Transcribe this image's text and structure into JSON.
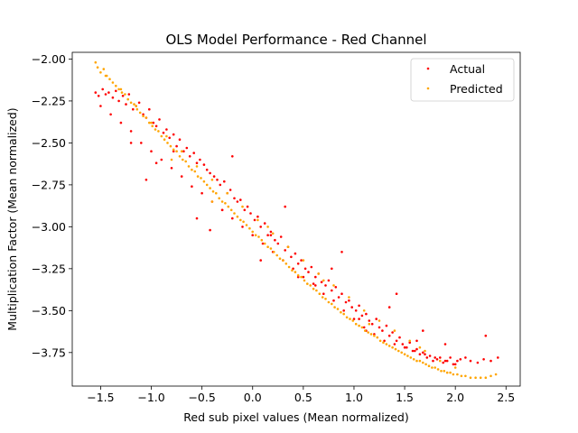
{
  "chart_data": {
    "type": "scatter",
    "title": "OLS Model Performance - Red Channel",
    "xlabel": "Red sub pixel values (Mean normalized)",
    "ylabel": "Multiplication Factor (Mean normalized)",
    "xlim": [
      -1.78,
      2.64
    ],
    "ylim": [
      -3.95,
      -1.96
    ],
    "xticks": [
      -1.5,
      -1.0,
      -0.5,
      0.0,
      0.5,
      1.0,
      1.5,
      2.0,
      2.5
    ],
    "xtick_labels": [
      "−1.5",
      "−1.0",
      "−0.5",
      "0.0",
      "0.5",
      "1.0",
      "1.5",
      "2.0",
      "2.5"
    ],
    "yticks": [
      -2.0,
      -2.25,
      -2.5,
      -2.75,
      -3.0,
      -3.25,
      -3.5,
      -3.75
    ],
    "ytick_labels": [
      "−2.00",
      "−2.25",
      "−2.50",
      "−2.75",
      "−3.00",
      "−3.25",
      "−3.50",
      "−3.75"
    ],
    "grid": false,
    "legend": "top-right",
    "series": [
      {
        "name": "Actual",
        "color": "#ff0000",
        "x": [
          -1.55,
          -1.52,
          -1.48,
          -1.45,
          -1.42,
          -1.38,
          -1.35,
          -1.32,
          -1.28,
          -1.25,
          -1.22,
          -1.18,
          -1.15,
          -1.12,
          -1.08,
          -1.05,
          -1.02,
          -0.98,
          -0.95,
          -0.92,
          -0.88,
          -0.85,
          -0.82,
          -0.78,
          -0.75,
          -0.72,
          -0.68,
          -0.65,
          -0.62,
          -0.58,
          -0.55,
          -0.52,
          -0.48,
          -0.45,
          -0.42,
          -0.38,
          -0.35,
          -0.32,
          -0.28,
          -0.25,
          -0.22,
          -0.18,
          -0.15,
          -0.12,
          -0.08,
          -0.05,
          -0.02,
          0.02,
          0.05,
          0.08,
          0.12,
          0.15,
          0.18,
          0.22,
          0.25,
          0.28,
          0.32,
          0.35,
          0.38,
          0.42,
          0.45,
          0.48,
          0.52,
          0.55,
          0.58,
          0.62,
          0.65,
          0.68,
          0.72,
          0.75,
          0.78,
          0.82,
          0.85,
          0.88,
          0.92,
          0.95,
          0.98,
          1.02,
          1.05,
          1.08,
          1.12,
          1.15,
          1.18,
          1.22,
          1.25,
          1.28,
          1.32,
          1.35,
          1.38,
          1.42,
          1.45,
          1.48,
          1.52,
          1.55,
          1.58,
          1.62,
          1.65,
          1.68,
          1.72,
          1.75,
          1.78,
          1.82,
          1.85,
          1.88,
          1.92,
          1.95,
          1.98,
          2.02,
          2.05,
          2.1,
          2.15,
          2.22,
          2.28,
          2.35,
          2.42,
          -1.5,
          -1.4,
          -1.3,
          -1.2,
          -1.1,
          -1.0,
          -0.9,
          -0.8,
          -0.7,
          -0.6,
          -0.5,
          -0.4,
          -0.3,
          -0.2,
          -0.1,
          0.0,
          0.1,
          0.2,
          0.3,
          0.4,
          0.5,
          0.6,
          0.7,
          0.8,
          0.9,
          1.0,
          1.1,
          1.2,
          1.3,
          1.4,
          1.5,
          1.6,
          1.7,
          1.8,
          1.9,
          2.0,
          -1.05,
          -0.95,
          -0.55,
          -0.42,
          -0.2,
          0.08,
          0.32,
          0.62,
          0.88,
          1.12,
          1.42,
          1.62,
          1.9,
          -1.2,
          -0.78,
          -0.3,
          0.18,
          0.45,
          0.78,
          1.05,
          1.35,
          1.68,
          2.3
        ],
        "y": [
          -2.2,
          -2.22,
          -2.18,
          -2.21,
          -2.2,
          -2.23,
          -2.19,
          -2.25,
          -2.22,
          -2.27,
          -2.21,
          -2.3,
          -2.28,
          -2.26,
          -2.33,
          -2.35,
          -2.3,
          -2.38,
          -2.4,
          -2.36,
          -2.44,
          -2.42,
          -2.47,
          -2.45,
          -2.52,
          -2.48,
          -2.55,
          -2.53,
          -2.58,
          -2.56,
          -2.62,
          -2.6,
          -2.63,
          -2.66,
          -2.68,
          -2.7,
          -2.72,
          -2.75,
          -2.73,
          -2.8,
          -2.78,
          -2.83,
          -2.85,
          -2.84,
          -2.9,
          -2.88,
          -2.92,
          -2.96,
          -2.94,
          -3.0,
          -2.98,
          -3.05,
          -3.03,
          -3.08,
          -3.1,
          -3.06,
          -3.14,
          -3.12,
          -3.18,
          -3.16,
          -3.22,
          -3.2,
          -3.25,
          -3.27,
          -3.24,
          -3.3,
          -3.28,
          -3.33,
          -3.35,
          -3.32,
          -3.38,
          -3.36,
          -3.42,
          -3.4,
          -3.45,
          -3.44,
          -3.48,
          -3.5,
          -3.47,
          -3.53,
          -3.52,
          -3.56,
          -3.58,
          -3.55,
          -3.6,
          -3.62,
          -3.59,
          -3.65,
          -3.63,
          -3.68,
          -3.66,
          -3.7,
          -3.72,
          -3.69,
          -3.74,
          -3.73,
          -3.76,
          -3.75,
          -3.78,
          -3.77,
          -3.8,
          -3.79,
          -3.78,
          -3.81,
          -3.8,
          -3.78,
          -3.82,
          -3.8,
          -3.79,
          -3.78,
          -3.8,
          -3.81,
          -3.79,
          -3.8,
          -3.78,
          -2.28,
          -2.33,
          -2.38,
          -2.43,
          -2.5,
          -2.55,
          -2.6,
          -2.65,
          -2.7,
          -2.76,
          -2.8,
          -2.85,
          -2.9,
          -2.95,
          -3.0,
          -3.05,
          -3.1,
          -3.15,
          -3.2,
          -3.25,
          -3.3,
          -3.34,
          -3.4,
          -3.44,
          -3.5,
          -3.55,
          -3.6,
          -3.64,
          -3.68,
          -3.7,
          -3.72,
          -3.74,
          -3.76,
          -3.78,
          -3.8,
          -3.82,
          -2.72,
          -2.62,
          -2.95,
          -3.02,
          -2.58,
          -3.2,
          -2.88,
          -3.35,
          -3.15,
          -3.62,
          -3.4,
          -3.68,
          -3.7,
          -2.5,
          -2.55,
          -2.9,
          -3.05,
          -3.3,
          -3.25,
          -3.55,
          -3.48,
          -3.62,
          -3.65
        ]
      },
      {
        "name": "Predicted",
        "color": "#ffa500",
        "x": [
          -1.55,
          -1.53,
          -1.5,
          -1.47,
          -1.44,
          -1.41,
          -1.38,
          -1.35,
          -1.32,
          -1.29,
          -1.26,
          -1.23,
          -1.2,
          -1.17,
          -1.14,
          -1.11,
          -1.08,
          -1.05,
          -1.02,
          -0.99,
          -0.96,
          -0.93,
          -0.9,
          -0.87,
          -0.84,
          -0.81,
          -0.78,
          -0.75,
          -0.72,
          -0.69,
          -0.66,
          -0.63,
          -0.6,
          -0.57,
          -0.54,
          -0.51,
          -0.48,
          -0.45,
          -0.42,
          -0.39,
          -0.36,
          -0.33,
          -0.3,
          -0.27,
          -0.24,
          -0.21,
          -0.18,
          -0.15,
          -0.12,
          -0.09,
          -0.06,
          -0.03,
          0.0,
          0.03,
          0.06,
          0.09,
          0.12,
          0.15,
          0.18,
          0.21,
          0.24,
          0.27,
          0.3,
          0.33,
          0.36,
          0.39,
          0.42,
          0.45,
          0.48,
          0.51,
          0.54,
          0.57,
          0.6,
          0.63,
          0.66,
          0.69,
          0.72,
          0.75,
          0.78,
          0.81,
          0.84,
          0.87,
          0.9,
          0.93,
          0.96,
          0.99,
          1.02,
          1.05,
          1.08,
          1.11,
          1.14,
          1.17,
          1.2,
          1.23,
          1.26,
          1.29,
          1.32,
          1.35,
          1.38,
          1.41,
          1.44,
          1.47,
          1.5,
          1.53,
          1.56,
          1.59,
          1.62,
          1.65,
          1.68,
          1.71,
          1.74,
          1.77,
          1.8,
          1.83,
          1.86,
          1.89,
          1.92,
          1.95,
          1.98,
          2.02,
          2.06,
          2.1,
          2.15,
          2.2,
          2.25,
          2.3,
          2.35,
          2.4,
          -1.45,
          -1.3,
          -1.15,
          -1.0,
          -0.85,
          -0.7,
          -0.55,
          -0.4,
          -0.25,
          -0.1,
          0.05,
          0.2,
          0.35,
          0.5,
          0.65,
          0.8,
          0.95,
          1.1,
          1.25,
          1.4,
          1.55,
          1.7,
          1.85,
          2.0,
          -0.8,
          -0.4,
          0.15,
          0.7,
          1.15,
          1.65
        ],
        "y": [
          -2.02,
          -2.05,
          -2.08,
          -2.06,
          -2.1,
          -2.12,
          -2.14,
          -2.16,
          -2.18,
          -2.2,
          -2.21,
          -2.24,
          -2.26,
          -2.27,
          -2.3,
          -2.32,
          -2.34,
          -2.35,
          -2.38,
          -2.4,
          -2.42,
          -2.43,
          -2.46,
          -2.48,
          -2.5,
          -2.52,
          -2.54,
          -2.55,
          -2.58,
          -2.6,
          -2.61,
          -2.64,
          -2.66,
          -2.67,
          -2.7,
          -2.71,
          -2.73,
          -2.75,
          -2.77,
          -2.79,
          -2.8,
          -2.83,
          -2.85,
          -2.86,
          -2.88,
          -2.9,
          -2.92,
          -2.94,
          -2.96,
          -2.97,
          -2.99,
          -3.01,
          -3.03,
          -3.05,
          -3.06,
          -3.08,
          -3.1,
          -3.12,
          -3.13,
          -3.15,
          -3.17,
          -3.19,
          -3.2,
          -3.22,
          -3.24,
          -3.26,
          -3.27,
          -3.29,
          -3.3,
          -3.32,
          -3.34,
          -3.35,
          -3.37,
          -3.38,
          -3.4,
          -3.42,
          -3.43,
          -3.45,
          -3.46,
          -3.48,
          -3.49,
          -3.51,
          -3.52,
          -3.54,
          -3.55,
          -3.56,
          -3.58,
          -3.59,
          -3.6,
          -3.62,
          -3.63,
          -3.64,
          -3.65,
          -3.66,
          -3.68,
          -3.69,
          -3.7,
          -3.71,
          -3.72,
          -3.73,
          -3.74,
          -3.75,
          -3.76,
          -3.77,
          -3.78,
          -3.79,
          -3.8,
          -3.8,
          -3.81,
          -3.82,
          -3.83,
          -3.84,
          -3.84,
          -3.85,
          -3.86,
          -3.86,
          -3.87,
          -3.87,
          -3.88,
          -3.88,
          -3.89,
          -3.89,
          -3.9,
          -3.9,
          -3.9,
          -3.9,
          -3.89,
          -3.88,
          -2.1,
          -2.18,
          -2.28,
          -2.38,
          -2.46,
          -2.55,
          -2.64,
          -2.72,
          -2.8,
          -2.88,
          -2.96,
          -3.04,
          -3.12,
          -3.2,
          -3.28,
          -3.35,
          -3.42,
          -3.5,
          -3.56,
          -3.62,
          -3.68,
          -3.74,
          -3.8,
          -3.84,
          -2.6,
          -2.85,
          -3.0,
          -3.32,
          -3.58,
          -3.72
        ]
      }
    ]
  }
}
